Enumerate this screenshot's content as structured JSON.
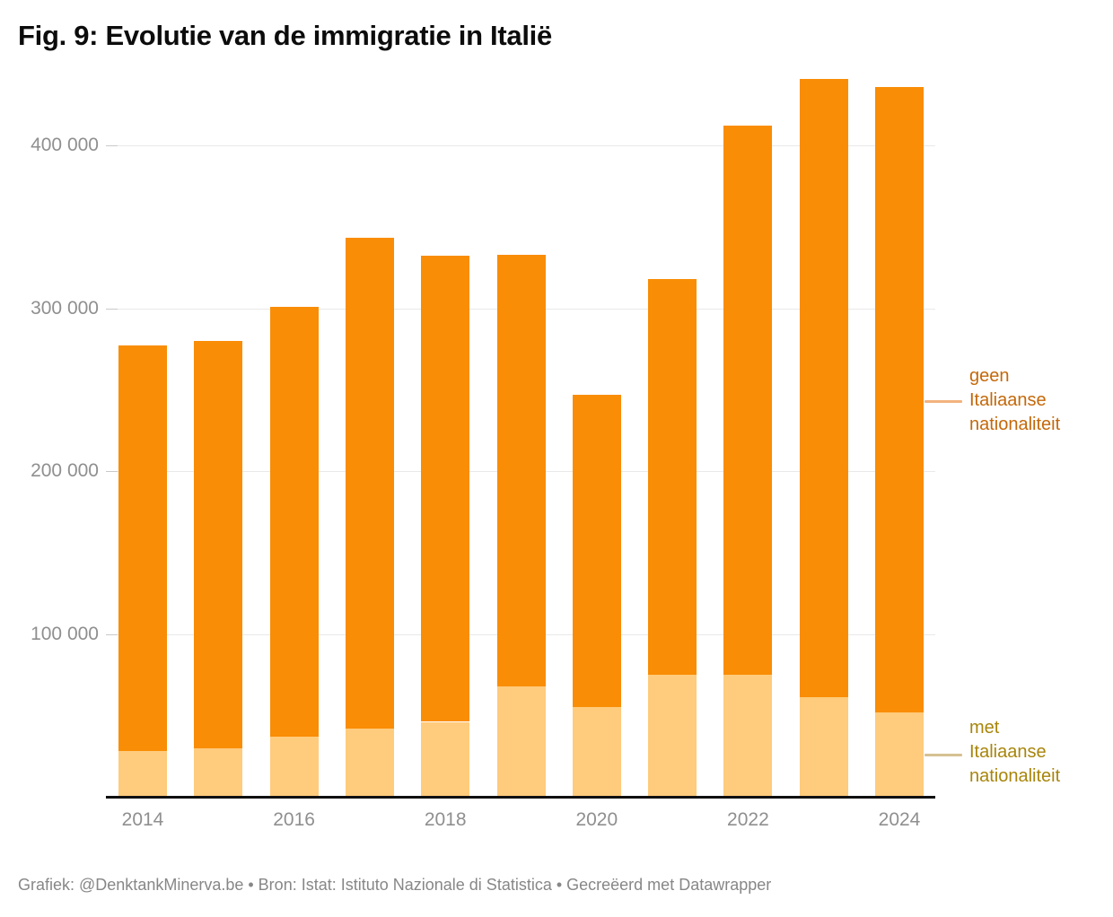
{
  "header": {
    "title": "Fig. 9: Evolutie van de immigratie in Italië"
  },
  "footer": {
    "text": "Grafiek: @DenktankMinerva.be • Bron: Istat: Istituto Nazionale di Statistica • Gecreëerd met Datawrapper"
  },
  "colors": {
    "geen_bar": "#f98d05",
    "met_bar": "#ffcb7c",
    "geen_label_text": "#c4680a",
    "met_label_text": "#a8850b",
    "geen_connector": "#f2b37e",
    "met_connector": "#d6c191",
    "grid": "#e9e9e9",
    "tick": "#c9c9c9",
    "axis_text": "#8f8f8f",
    "baseline": "#101010",
    "title_text": "#0c0c0c",
    "footer_text": "#878787"
  },
  "chart_data": {
    "type": "bar",
    "stacked": true,
    "title": "Fig. 9: Evolutie van de immigratie in Italië",
    "categories": [
      2014,
      2015,
      2016,
      2017,
      2018,
      2019,
      2020,
      2021,
      2022,
      2023,
      2024
    ],
    "series": [
      {
        "name": "met Italiaanse nationaliteit",
        "values": [
          28000,
          30000,
          37000,
          42000,
          46000,
          68000,
          55000,
          75000,
          75000,
          61000,
          52000
        ]
      },
      {
        "name": "geen Italiaanse nationaliteit",
        "values": [
          249000,
          250000,
          264000,
          301000,
          286000,
          265000,
          192000,
          243000,
          337000,
          380000,
          384000
        ]
      }
    ],
    "totals": [
      277000,
      280000,
      301000,
      343000,
      332000,
      333000,
      247000,
      318000,
      412000,
      441000,
      436000
    ],
    "xlabel": "",
    "ylabel": "",
    "ylim": [
      0,
      450000
    ],
    "yticks": {
      "values": [
        100000,
        200000,
        300000,
        400000
      ],
      "labels": [
        "100 000",
        "200 000",
        "300 000",
        "400 000"
      ]
    },
    "xticks": [
      "2014",
      "2016",
      "2018",
      "2020",
      "2022",
      "2024"
    ],
    "grid": true,
    "legend_position": "right-annotations"
  }
}
